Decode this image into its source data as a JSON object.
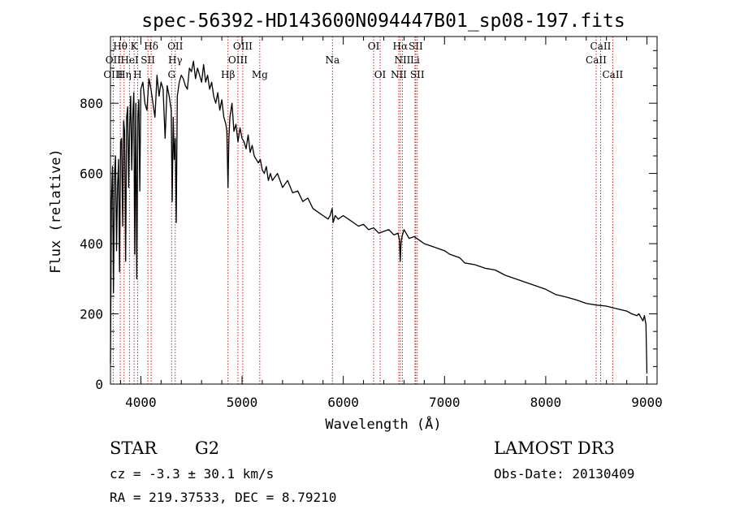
{
  "chart_data": {
    "type": "line",
    "title": "spec-56392-HD143600N094447B01_sp08-197.fits",
    "xlabel": "Wavelength (Å)",
    "ylabel": "Flux (relative)",
    "xlim": [
      3700,
      9100
    ],
    "ylim": [
      0,
      990
    ],
    "x_ticks": [
      4000,
      5000,
      6000,
      7000,
      8000,
      9000
    ],
    "y_ticks": [
      0,
      200,
      400,
      600,
      800
    ],
    "series": [
      {
        "name": "flux",
        "x": [
          3700,
          3710,
          3720,
          3730,
          3740,
          3750,
          3760,
          3770,
          3780,
          3790,
          3800,
          3810,
          3820,
          3830,
          3840,
          3850,
          3860,
          3870,
          3880,
          3890,
          3900,
          3910,
          3920,
          3930,
          3940,
          3950,
          3960,
          3970,
          3980,
          3990,
          4000,
          4020,
          4040,
          4060,
          4080,
          4100,
          4120,
          4140,
          4160,
          4180,
          4200,
          4220,
          4240,
          4260,
          4280,
          4300,
          4310,
          4320,
          4330,
          4340,
          4350,
          4360,
          4380,
          4400,
          4420,
          4440,
          4460,
          4480,
          4500,
          4520,
          4540,
          4560,
          4580,
          4600,
          4620,
          4640,
          4660,
          4680,
          4700,
          4720,
          4740,
          4760,
          4780,
          4800,
          4820,
          4840,
          4850,
          4861,
          4870,
          4880,
          4900,
          4920,
          4940,
          4960,
          4980,
          5000,
          5020,
          5040,
          5060,
          5080,
          5100,
          5120,
          5140,
          5160,
          5180,
          5200,
          5220,
          5240,
          5260,
          5280,
          5300,
          5350,
          5400,
          5450,
          5500,
          5550,
          5600,
          5650,
          5700,
          5750,
          5800,
          5850,
          5870,
          5890,
          5900,
          5920,
          5950,
          6000,
          6050,
          6100,
          6150,
          6200,
          6250,
          6300,
          6350,
          6400,
          6450,
          6500,
          6540,
          6555,
          6563,
          6570,
          6580,
          6600,
          6650,
          6700,
          6750,
          6800,
          6850,
          6900,
          6950,
          7000,
          7050,
          7100,
          7150,
          7200,
          7300,
          7400,
          7500,
          7600,
          7700,
          7800,
          7900,
          8000,
          8100,
          8200,
          8300,
          8400,
          8500,
          8600,
          8700,
          8800,
          8850,
          8900,
          8920,
          8940,
          8960,
          8975,
          8990,
          9000
        ],
        "values": [
          60,
          520,
          620,
          260,
          600,
          650,
          380,
          560,
          640,
          320,
          690,
          700,
          450,
          750,
          720,
          350,
          760,
          790,
          560,
          740,
          820,
          610,
          760,
          830,
          370,
          800,
          300,
          760,
          810,
          550,
          840,
          860,
          800,
          780,
          870,
          840,
          800,
          760,
          880,
          820,
          860,
          840,
          700,
          850,
          820,
          780,
          520,
          760,
          640,
          700,
          460,
          820,
          860,
          880,
          870,
          850,
          840,
          900,
          890,
          920,
          870,
          900,
          880,
          860,
          910,
          860,
          880,
          840,
          860,
          820,
          800,
          830,
          780,
          810,
          760,
          740,
          720,
          560,
          700,
          760,
          800,
          720,
          740,
          690,
          730,
          700,
          690,
          670,
          710,
          660,
          680,
          650,
          640,
          630,
          640,
          610,
          600,
          620,
          580,
          600,
          580,
          600,
          560,
          580,
          545,
          550,
          520,
          530,
          500,
          490,
          480,
          470,
          480,
          500,
          460,
          480,
          470,
          480,
          470,
          460,
          450,
          455,
          440,
          445,
          430,
          435,
          440,
          425,
          430,
          410,
          350,
          400,
          420,
          440,
          415,
          420,
          410,
          400,
          395,
          390,
          385,
          380,
          370,
          365,
          360,
          345,
          340,
          330,
          325,
          310,
          300,
          290,
          280,
          270,
          255,
          248,
          240,
          230,
          225,
          222,
          215,
          208,
          200,
          195,
          200,
          190,
          180,
          195,
          170,
          30
        ]
      }
    ],
    "lines": [
      {
        "label": "Hθ",
        "x": 3797,
        "row": 1
      },
      {
        "label": "K",
        "x": 3934,
        "row": 1
      },
      {
        "label": "Hδ",
        "x": 4102,
        "row": 1
      },
      {
        "label": "OII",
        "x": 4340,
        "row": 1
      },
      {
        "label": "OIII",
        "x": 5007,
        "row": 1
      },
      {
        "label": "OI",
        "x": 6300,
        "row": 1
      },
      {
        "label": "Hα",
        "x": 6563,
        "row": 1
      },
      {
        "label": "SII",
        "x": 6716,
        "row": 1
      },
      {
        "label": "CaII",
        "x": 8542,
        "row": 1
      },
      {
        "label": "OII",
        "x": 3727,
        "row": 2
      },
      {
        "label": "HeI",
        "x": 3889,
        "row": 2
      },
      {
        "label": "SII",
        "x": 4070,
        "row": 2
      },
      {
        "label": "Hγ",
        "x": 4340,
        "row": 2
      },
      {
        "label": "OIII",
        "x": 4959,
        "row": 2
      },
      {
        "label": "Na",
        "x": 5893,
        "row": 2
      },
      {
        "label": "NII",
        "x": 6584,
        "row": 2
      },
      {
        "label": "Li",
        "x": 6708,
        "row": 2
      },
      {
        "label": "CaII",
        "x": 8498,
        "row": 2
      },
      {
        "label": "OIII",
        "x": 3727,
        "row": 3
      },
      {
        "label": "Hη",
        "x": 3835,
        "row": 3
      },
      {
        "label": "H",
        "x": 3968,
        "row": 3
      },
      {
        "label": "G",
        "x": 4304,
        "row": 3
      },
      {
        "label": "Hβ",
        "x": 4861,
        "row": 3
      },
      {
        "label": "Mg",
        "x": 5175,
        "row": 3
      },
      {
        "label": "OI",
        "x": 6364,
        "row": 3
      },
      {
        "label": "NII",
        "x": 6548,
        "row": 3
      },
      {
        "label": "SII",
        "x": 6731,
        "row": 3
      },
      {
        "label": "CaII",
        "x": 8662,
        "row": 3
      }
    ]
  },
  "info": {
    "class_label": "STAR",
    "subclass": "G2",
    "survey": "LAMOST DR3",
    "cz": "cz = -3.3 ± 30.1 km/s",
    "obs_date": "Obs-Date: 20130409",
    "coords": "RA = 219.37533, DEC =   8.79210"
  },
  "colors": {
    "line_marker": "#cc2222",
    "spectrum": "#000000"
  }
}
